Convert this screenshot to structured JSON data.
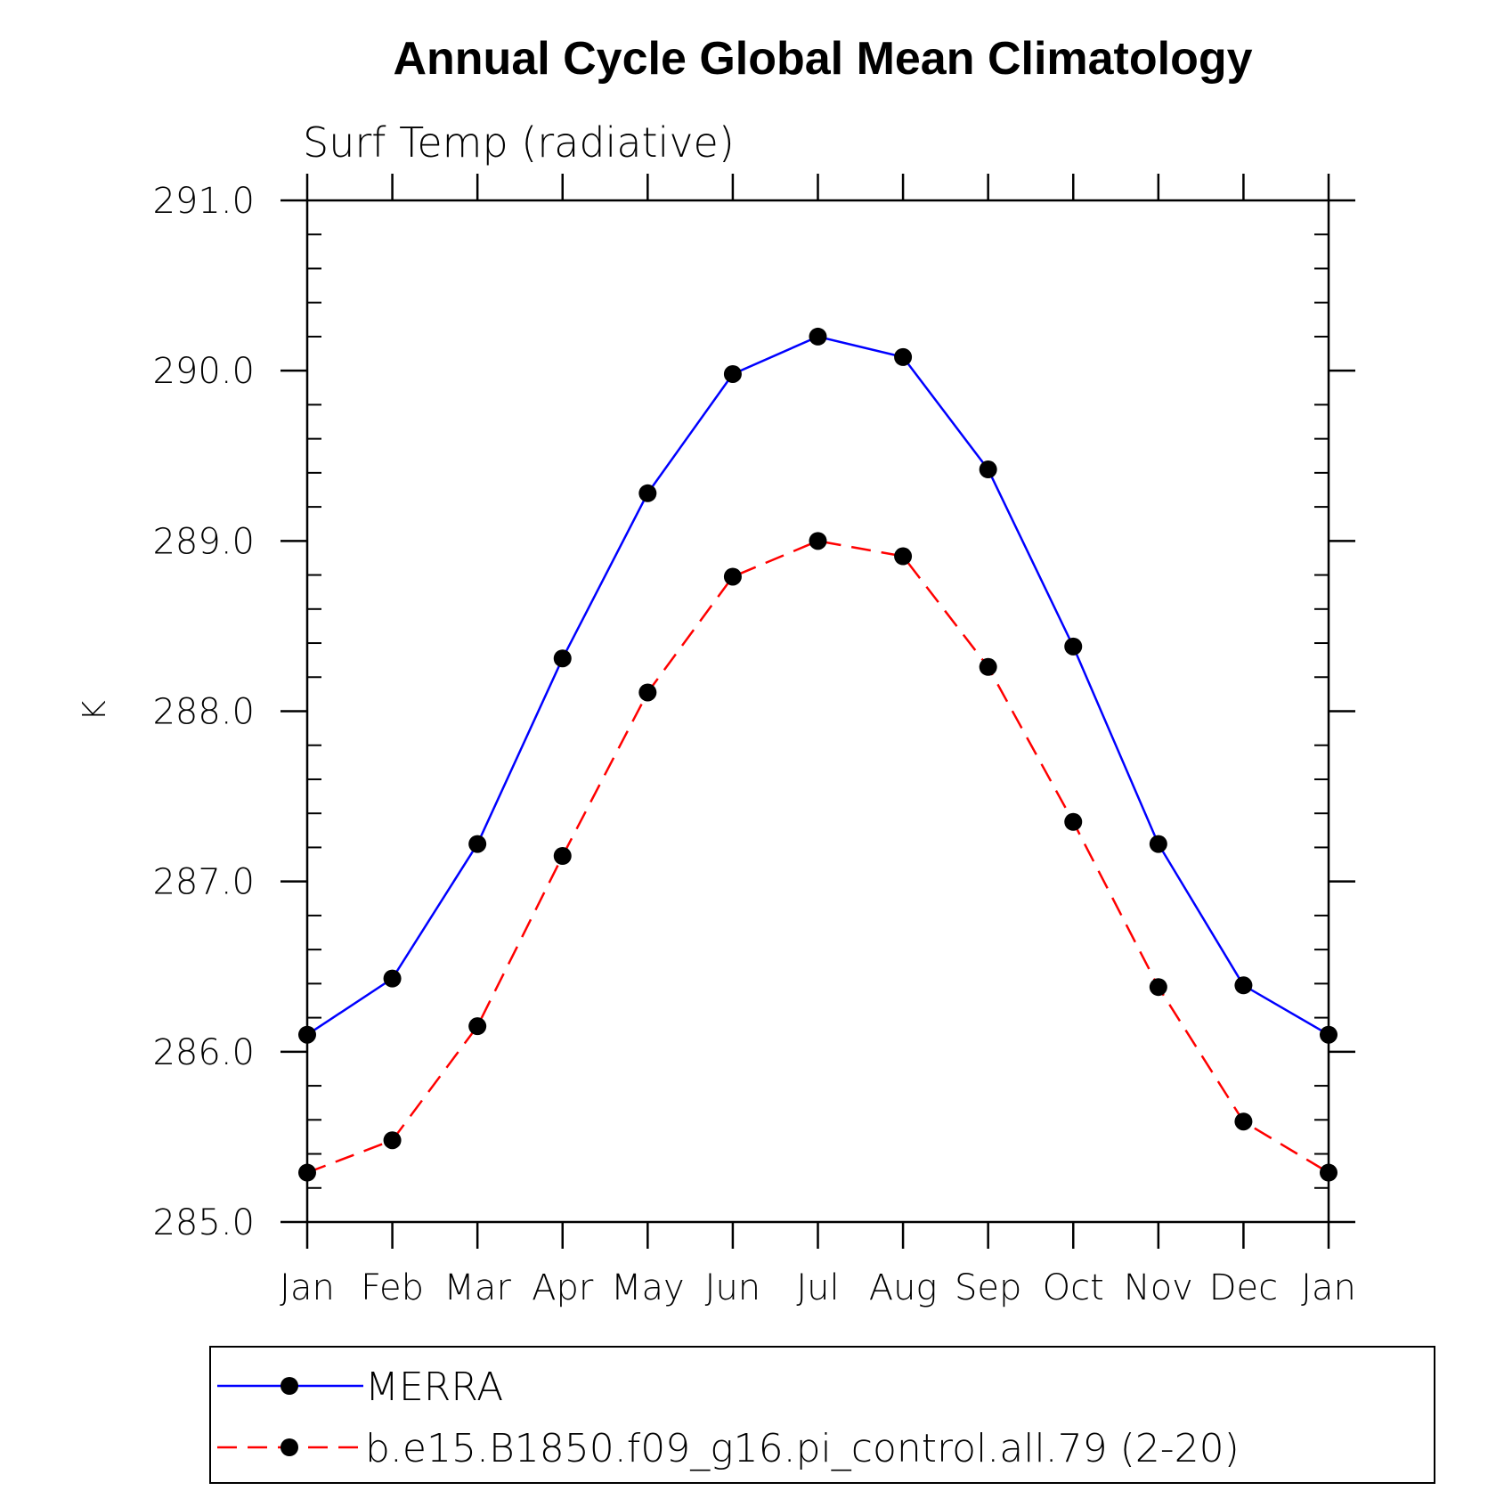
{
  "chart_data": {
    "type": "line",
    "title": "Annual Cycle Global Mean Climatology",
    "subtitle": "Surf Temp (radiative)",
    "ylabel": "K",
    "xlabel": "",
    "categories": [
      "Jan",
      "Feb",
      "Mar",
      "Apr",
      "May",
      "Jun",
      "Jul",
      "Aug",
      "Sep",
      "Oct",
      "Nov",
      "Dec",
      "Jan"
    ],
    "ylim": [
      285.0,
      291.0
    ],
    "yticks": [
      "285.0",
      "286.0",
      "287.0",
      "288.0",
      "289.0",
      "290.0",
      "291.0"
    ],
    "grid": false,
    "legend_position": "bottom",
    "series": [
      {
        "name": "MERRA",
        "color": "#0000ff",
        "line_style": "solid",
        "marker": "filled-circle",
        "values": [
          286.1,
          286.43,
          287.22,
          288.31,
          289.28,
          289.98,
          290.2,
          290.08,
          289.42,
          288.38,
          287.22,
          286.39,
          286.1
        ]
      },
      {
        "name": "b.e15.B1850.f09_g16.pi_control.all.79 (2-20)",
        "color": "#ff0000",
        "line_style": "dashed",
        "marker": "filled-circle",
        "values": [
          285.29,
          285.48,
          286.15,
          287.15,
          288.11,
          288.79,
          289.0,
          288.91,
          288.26,
          287.35,
          286.38,
          285.59,
          285.29
        ]
      }
    ]
  }
}
